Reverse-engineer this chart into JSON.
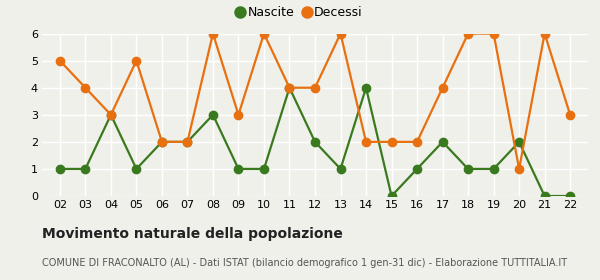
{
  "years": [
    2,
    3,
    4,
    5,
    6,
    7,
    8,
    9,
    10,
    11,
    12,
    13,
    14,
    15,
    16,
    17,
    18,
    19,
    20,
    21,
    22
  ],
  "nascite": [
    1,
    1,
    3,
    1,
    2,
    2,
    3,
    1,
    1,
    4,
    2,
    1,
    4,
    0,
    1,
    2,
    1,
    1,
    2,
    0,
    0
  ],
  "decessi": [
    5,
    4,
    3,
    5,
    2,
    2,
    6,
    3,
    6,
    4,
    4,
    6,
    2,
    2,
    2,
    4,
    6,
    6,
    1,
    6,
    3
  ],
  "nascite_color": "#3a7a1e",
  "decessi_color": "#e87010",
  "background_color": "#f0f0eb",
  "ylim": [
    0,
    6
  ],
  "yticks": [
    0,
    1,
    2,
    3,
    4,
    5,
    6
  ],
  "legend_nascite": "Nascite",
  "legend_decessi": "Decessi",
  "title": "Movimento naturale della popolazione",
  "subtitle": "COMUNE DI FRACONALTO (AL) - Dati ISTAT (bilancio demografico 1 gen-31 dic) - Elaborazione TUTTITALIA.IT",
  "title_fontsize": 10,
  "subtitle_fontsize": 7,
  "marker_size": 6,
  "line_width": 1.6,
  "grid_color": "#ffffff",
  "tick_fontsize": 8
}
